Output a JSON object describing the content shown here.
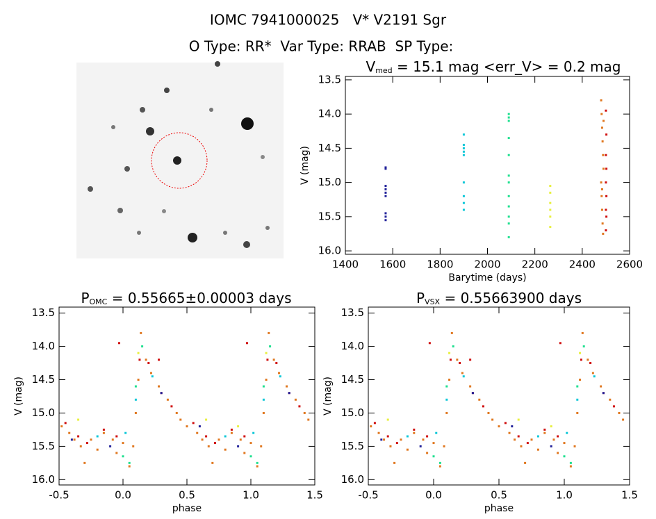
{
  "header": {
    "title": "IOMC 7941000025   V* V2191 Sgr",
    "subtitle": "O Type: RR*  Var Type: RRAB  SP Type:"
  },
  "chart_data": [
    {
      "type": "scatter",
      "title": {
        "text": "V",
        "sub": "med",
        "rest": " = 15.1 mag <err_V> = 0.2 mag"
      },
      "xlabel": "Barytime (days)",
      "ylabel": "V (mag)",
      "xlim": [
        1400,
        2600
      ],
      "xticks": [
        1400,
        1600,
        1800,
        2000,
        2200,
        2400,
        2600
      ],
      "ylim": [
        16.05,
        13.45
      ],
      "yticks": [
        13.5,
        {
          "value": 14,
          "label": "14.0"
        },
        14.5,
        {
          "value": 15,
          "label": "15.0"
        },
        15.5,
        {
          "value": 16,
          "label": "16.0"
        }
      ],
      "series": [
        {
          "color": "#22229a",
          "x": [
            1570,
            1570,
            1570,
            1570,
            1570,
            1570,
            1570,
            1570,
            1570
          ],
          "values": [
            14.8,
            14.78,
            15.05,
            15.1,
            15.15,
            15.2,
            15.45,
            15.5,
            15.55
          ]
        },
        {
          "color": "#10c8d8",
          "x": [
            1900,
            1900,
            1900,
            1900,
            1900,
            1900,
            1900,
            1900,
            1900
          ],
          "values": [
            14.3,
            14.45,
            14.5,
            14.55,
            14.6,
            15.0,
            15.2,
            15.3,
            15.4
          ]
        },
        {
          "color": "#20e090",
          "x": [
            2090,
            2090,
            2090,
            2090,
            2090,
            2090,
            2090,
            2090,
            2090,
            2090,
            2090,
            2090
          ],
          "values": [
            14.0,
            14.05,
            14.1,
            14.35,
            14.6,
            14.9,
            15.0,
            15.2,
            15.35,
            15.5,
            15.6,
            15.8
          ]
        },
        {
          "color": "#e8f040",
          "x": [
            2265,
            2265,
            2265,
            2265,
            2265,
            2265
          ],
          "values": [
            15.05,
            15.15,
            15.3,
            15.4,
            15.5,
            15.65
          ]
        },
        {
          "color": "#e07820",
          "x": [
            2480,
            2482,
            2484,
            2486,
            2488,
            2490,
            2480,
            2482,
            2484,
            2486,
            2488,
            2490,
            2484
          ],
          "values": [
            13.8,
            14.0,
            14.2,
            14.4,
            14.6,
            14.8,
            15.0,
            15.2,
            15.4,
            15.6,
            15.75,
            14.1,
            15.1
          ]
        },
        {
          "color": "#d01010",
          "x": [
            2500,
            2502,
            2500,
            2502,
            2500,
            2502,
            2500,
            2502,
            2500
          ],
          "values": [
            13.95,
            14.3,
            14.6,
            14.8,
            15.0,
            15.2,
            15.4,
            15.5,
            15.7
          ]
        }
      ]
    },
    {
      "type": "scatter",
      "title": {
        "text": "P",
        "sub": "OMC",
        "rest": " = 0.55665±0.00003 days"
      },
      "xlabel": "phase",
      "ylabel": "V (mag)",
      "xlim": [
        -0.5,
        1.5
      ],
      "xticks": [
        -0.5,
        {
          "value": 0,
          "label": "0.0"
        },
        0.5,
        {
          "value": 1,
          "label": "1.0"
        },
        1.5
      ],
      "ylim": [
        16.08,
        13.41
      ],
      "yticks": [
        13.5,
        {
          "value": 14,
          "label": "14.0"
        },
        14.5,
        {
          "value": 15,
          "label": "15.0"
        },
        15.5,
        {
          "value": 16,
          "label": "16.0"
        }
      ],
      "series": [
        {
          "color": "#e07820",
          "x": [
            -0.48,
            -0.42,
            -0.38,
            -0.33,
            -0.3,
            -0.25,
            -0.2,
            -0.15,
            -0.08,
            -0.05,
            0.0,
            0.05,
            0.08,
            0.1,
            0.12,
            0.14,
            0.18,
            0.22,
            0.28,
            0.35,
            0.42,
            0.45,
            0.5,
            0.58,
            0.62,
            0.67,
            0.7,
            0.75,
            0.8,
            0.85,
            0.92,
            0.95,
            1.0,
            1.05,
            1.08,
            1.1,
            1.12,
            1.14,
            1.18,
            1.22,
            1.28,
            1.35,
            1.42,
            1.45
          ],
          "values": [
            15.2,
            15.3,
            15.4,
            15.5,
            15.75,
            15.4,
            15.55,
            15.3,
            15.4,
            15.6,
            15.45,
            15.8,
            15.5,
            15.0,
            14.5,
            13.8,
            14.2,
            14.4,
            14.6,
            14.8,
            15.0,
            15.1,
            15.2,
            15.3,
            15.4,
            15.5,
            15.75,
            15.4,
            15.55,
            15.3,
            15.4,
            15.6,
            15.45,
            15.8,
            15.5,
            15.0,
            14.5,
            13.8,
            14.2,
            14.4,
            14.6,
            14.8,
            15.0,
            15.1
          ]
        },
        {
          "color": "#d01010",
          "x": [
            -0.45,
            -0.35,
            -0.28,
            -0.15,
            -0.05,
            -0.03,
            0.13,
            0.2,
            0.28,
            0.3,
            0.38,
            0.55,
            0.65,
            0.72,
            0.85,
            0.95,
            0.97,
            1.13,
            1.2,
            1.3,
            1.38
          ],
          "values": [
            15.15,
            15.35,
            15.45,
            15.25,
            15.35,
            13.95,
            14.2,
            14.25,
            14.2,
            14.7,
            14.9,
            15.15,
            15.35,
            15.45,
            15.25,
            15.35,
            13.95,
            14.2,
            14.25,
            14.7,
            14.9
          ]
        },
        {
          "color": "#10c8d8",
          "x": [
            -0.2,
            0.02,
            0.1,
            0.23,
            0.8,
            1.02,
            1.1,
            1.23
          ],
          "values": [
            15.35,
            15.3,
            14.8,
            14.45,
            15.35,
            15.3,
            14.8,
            14.45
          ]
        },
        {
          "color": "#20e090",
          "x": [
            0.0,
            0.05,
            0.1,
            0.15,
            1.0,
            1.05,
            1.1,
            1.15
          ],
          "values": [
            15.65,
            15.75,
            14.6,
            14.0,
            15.65,
            15.75,
            14.6,
            14.0
          ]
        },
        {
          "color": "#e8f040",
          "x": [
            -0.35,
            0.12,
            0.65,
            0.9,
            1.12
          ],
          "values": [
            15.1,
            14.1,
            15.1,
            15.2,
            14.1
          ]
        },
        {
          "color": "#22229a",
          "x": [
            -0.4,
            -0.1,
            0.3,
            0.6,
            0.9,
            1.3
          ],
          "values": [
            15.4,
            15.5,
            14.7,
            15.2,
            15.5,
            14.7
          ]
        }
      ]
    },
    {
      "type": "scatter",
      "title": {
        "text": "P",
        "sub": "VSX",
        "rest": " = 0.55663900 days"
      },
      "xlabel": "phase",
      "ylabel": "V (mag)",
      "xlim": [
        -0.5,
        1.5
      ],
      "xticks": [
        -0.5,
        {
          "value": 0,
          "label": "0.0"
        },
        0.5,
        {
          "value": 1,
          "label": "1.0"
        },
        1.5
      ],
      "ylim": [
        16.08,
        13.41
      ],
      "yticks": [
        13.5,
        {
          "value": 14,
          "label": "14.0"
        },
        14.5,
        {
          "value": 15,
          "label": "15.0"
        },
        15.5,
        {
          "value": 16,
          "label": "16.0"
        }
      ],
      "series": [
        {
          "color": "#e07820",
          "x": [
            -0.48,
            -0.42,
            -0.38,
            -0.33,
            -0.3,
            -0.25,
            -0.2,
            -0.15,
            -0.08,
            -0.05,
            0.0,
            0.05,
            0.08,
            0.1,
            0.12,
            0.14,
            0.18,
            0.22,
            0.28,
            0.35,
            0.42,
            0.45,
            0.5,
            0.58,
            0.62,
            0.67,
            0.7,
            0.75,
            0.8,
            0.85,
            0.92,
            0.95,
            1.0,
            1.05,
            1.08,
            1.1,
            1.12,
            1.14,
            1.18,
            1.22,
            1.28,
            1.35,
            1.42,
            1.45
          ],
          "values": [
            15.2,
            15.3,
            15.4,
            15.5,
            15.75,
            15.4,
            15.55,
            15.3,
            15.4,
            15.6,
            15.45,
            15.8,
            15.5,
            15.0,
            14.5,
            13.8,
            14.2,
            14.4,
            14.6,
            14.8,
            15.0,
            15.1,
            15.2,
            15.3,
            15.4,
            15.5,
            15.75,
            15.4,
            15.55,
            15.3,
            15.4,
            15.6,
            15.45,
            15.8,
            15.5,
            15.0,
            14.5,
            13.8,
            14.2,
            14.4,
            14.6,
            14.8,
            15.0,
            15.1
          ]
        },
        {
          "color": "#d01010",
          "x": [
            -0.45,
            -0.35,
            -0.28,
            -0.15,
            -0.05,
            -0.03,
            0.13,
            0.2,
            0.28,
            0.3,
            0.38,
            0.55,
            0.65,
            0.72,
            0.85,
            0.95,
            0.97,
            1.13,
            1.2,
            1.3,
            1.38
          ],
          "values": [
            15.15,
            15.35,
            15.45,
            15.25,
            15.35,
            13.95,
            14.2,
            14.25,
            14.2,
            14.7,
            14.9,
            15.15,
            15.35,
            15.45,
            15.25,
            15.35,
            13.95,
            14.2,
            14.25,
            14.7,
            14.9
          ]
        },
        {
          "color": "#10c8d8",
          "x": [
            -0.2,
            0.02,
            0.1,
            0.23,
            0.8,
            1.02,
            1.1,
            1.23
          ],
          "values": [
            15.35,
            15.3,
            14.8,
            14.45,
            15.35,
            15.3,
            14.8,
            14.45
          ]
        },
        {
          "color": "#20e090",
          "x": [
            0.0,
            0.05,
            0.1,
            0.15,
            1.0,
            1.05,
            1.1,
            1.15
          ],
          "values": [
            15.65,
            15.75,
            14.6,
            14.0,
            15.65,
            15.75,
            14.6,
            14.0
          ]
        },
        {
          "color": "#e8f040",
          "x": [
            -0.35,
            0.12,
            0.65,
            0.9,
            1.12
          ],
          "values": [
            15.1,
            14.1,
            15.1,
            15.2,
            14.1
          ]
        },
        {
          "color": "#22229a",
          "x": [
            -0.4,
            -0.1,
            0.3,
            0.6,
            0.9,
            1.3
          ],
          "values": [
            15.4,
            15.5,
            14.7,
            15.2,
            15.5,
            14.7
          ]
        }
      ]
    }
  ]
}
